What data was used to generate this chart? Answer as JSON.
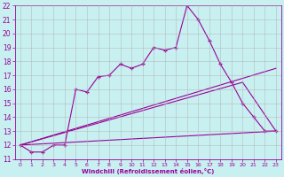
{
  "xlabel": "Windchill (Refroidissement éolien,°C)",
  "xlim": [
    -0.5,
    23.5
  ],
  "ylim": [
    11,
    22
  ],
  "yticks": [
    11,
    12,
    13,
    14,
    15,
    16,
    17,
    18,
    19,
    20,
    21,
    22
  ],
  "xticks": [
    0,
    1,
    2,
    3,
    4,
    5,
    6,
    7,
    8,
    9,
    10,
    11,
    12,
    13,
    14,
    15,
    16,
    17,
    18,
    19,
    20,
    21,
    22,
    23
  ],
  "bg_color": "#c8f0f0",
  "line_color": "#990099",
  "grid_color": "#b0b0b0",
  "line1_x": [
    0,
    1,
    2,
    3,
    4,
    5,
    6,
    7,
    8,
    9,
    10,
    11,
    12,
    13,
    14,
    15,
    16,
    17,
    18,
    19,
    20,
    21,
    22,
    23
  ],
  "line1_y": [
    12.0,
    11.5,
    11.5,
    12.0,
    12.0,
    16.0,
    15.8,
    16.9,
    17.0,
    17.8,
    17.5,
    17.8,
    19.0,
    18.8,
    19.0,
    22.0,
    21.0,
    19.5,
    17.8,
    16.5,
    15.0,
    14.0,
    13.0,
    13.0
  ],
  "line2_x": [
    0,
    23
  ],
  "line2_y": [
    12.0,
    17.5
  ],
  "line3_x": [
    0,
    20,
    23
  ],
  "line3_y": [
    12.0,
    16.5,
    13.0
  ],
  "line4_x": [
    0,
    23
  ],
  "line4_y": [
    12.0,
    13.0
  ]
}
